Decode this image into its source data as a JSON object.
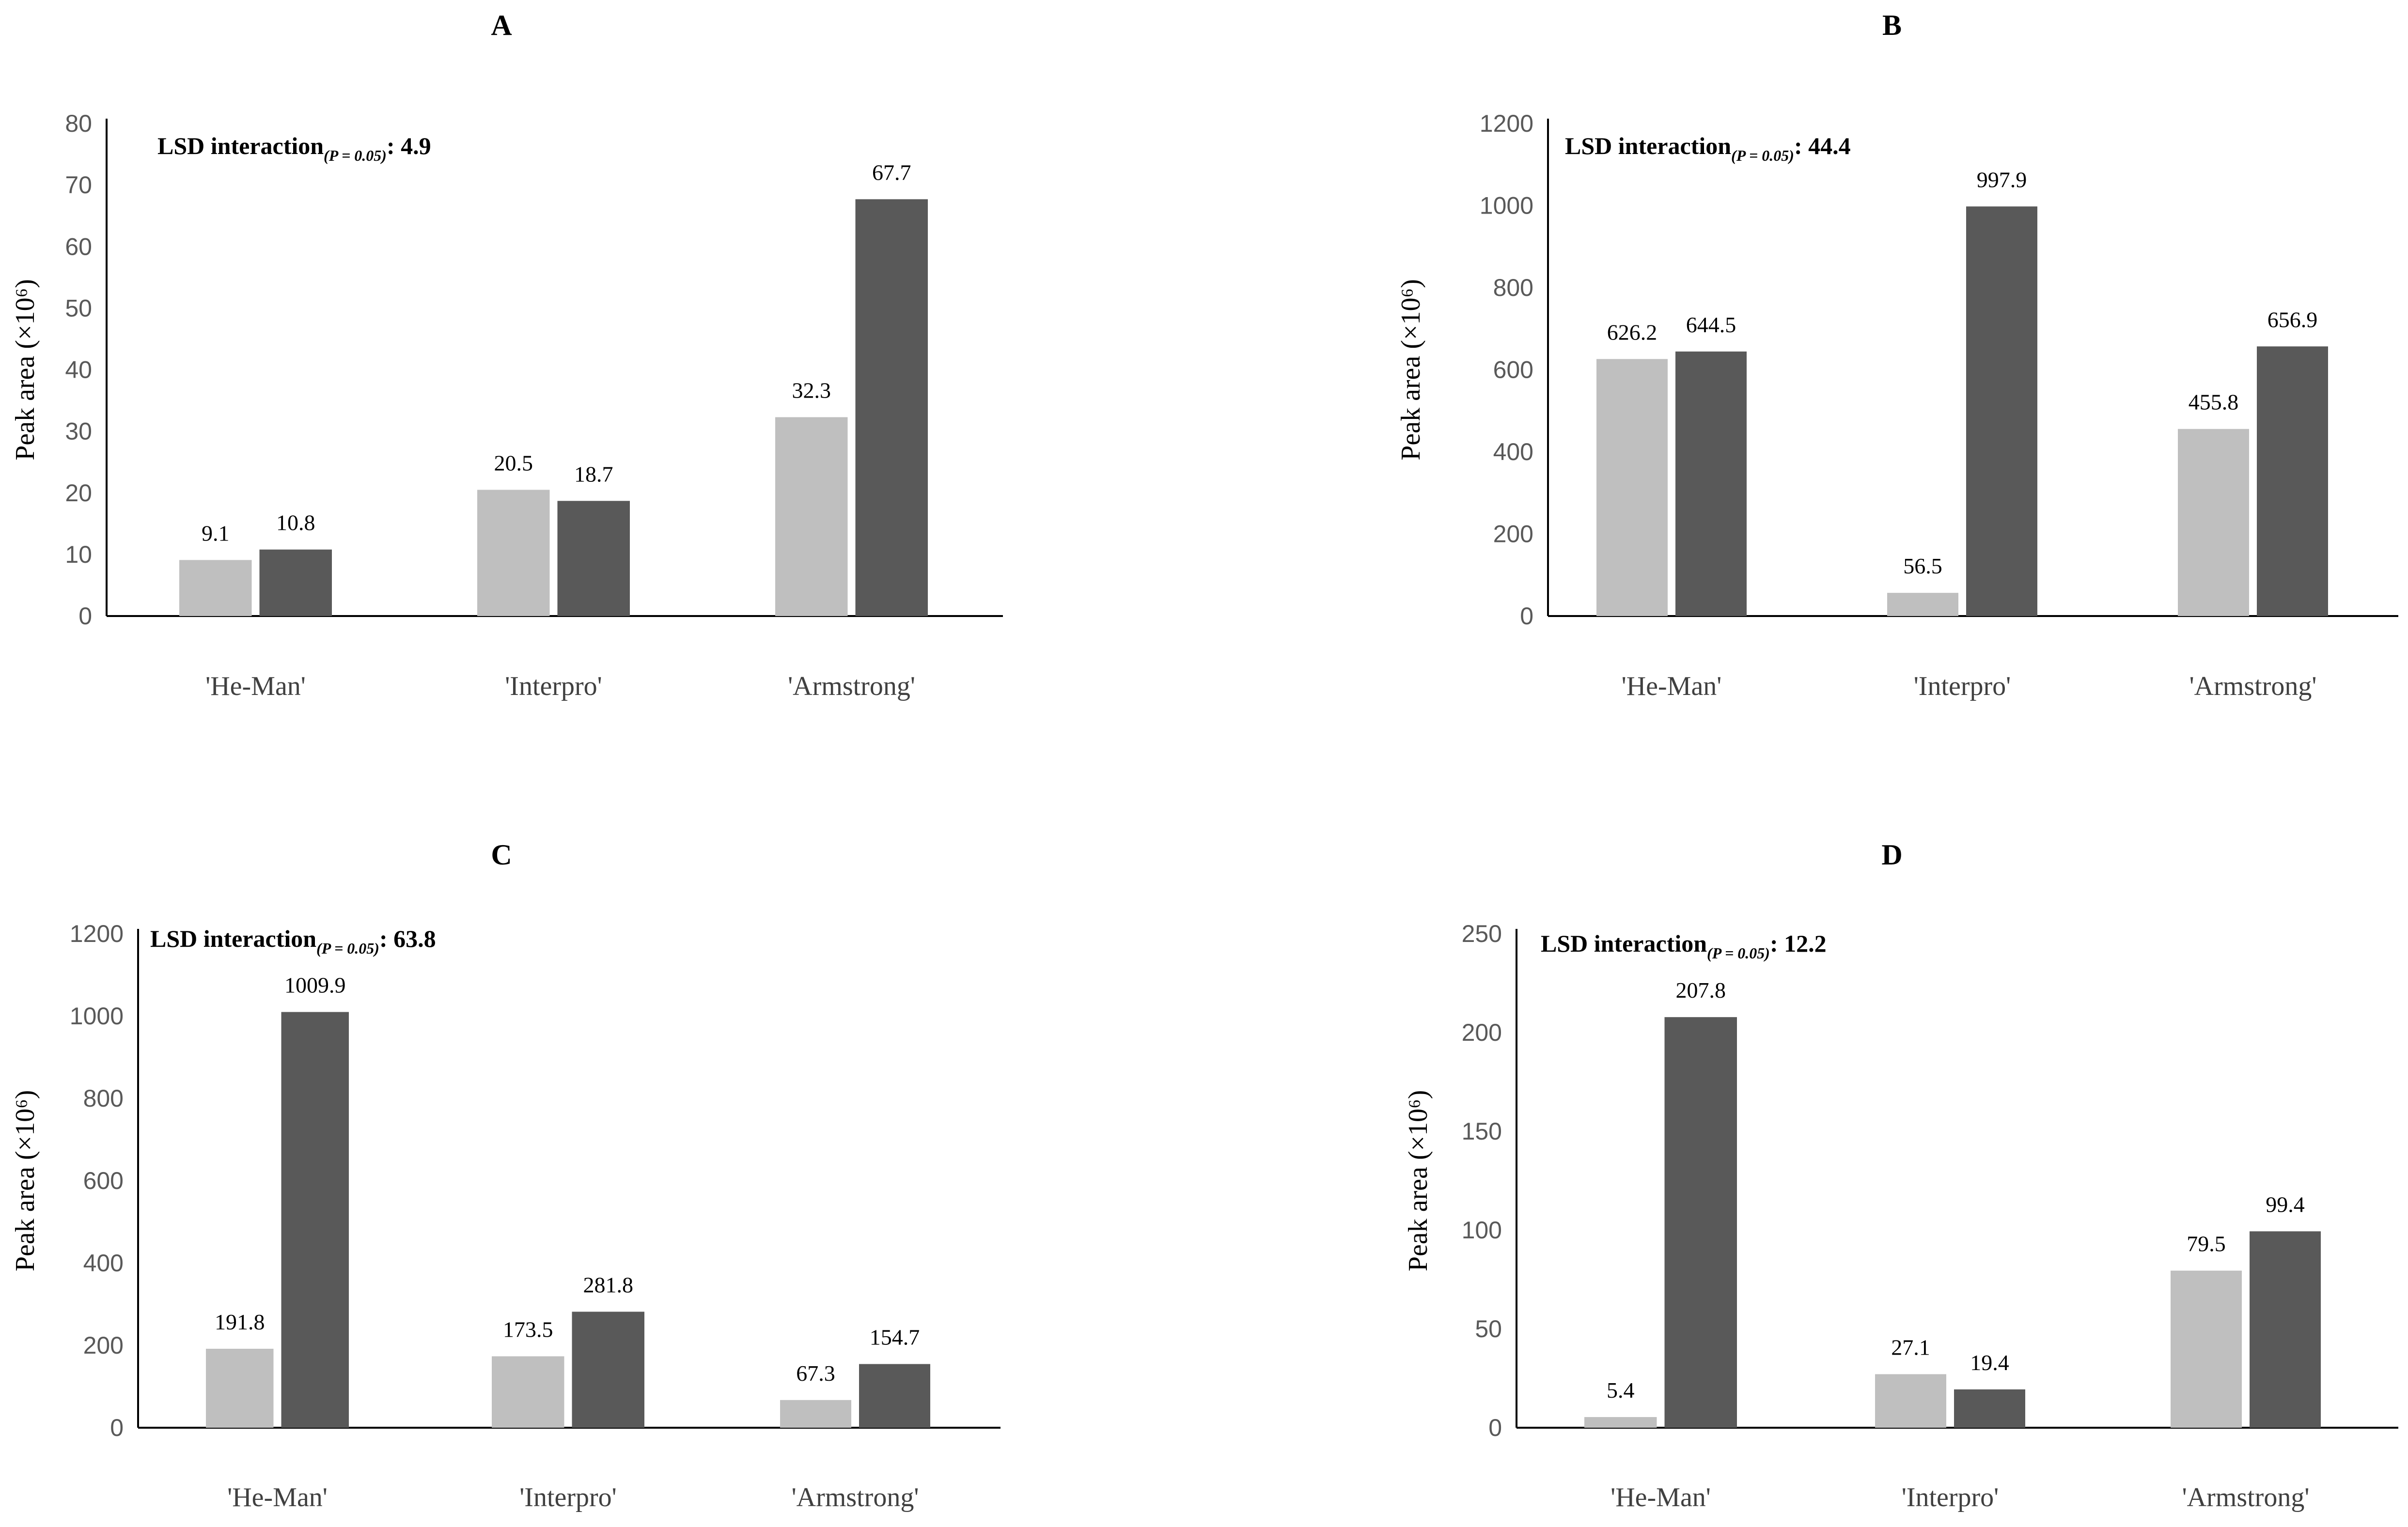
{
  "chart_data": [
    {
      "type": "bar",
      "panel": "A",
      "annotation": {
        "prefix": "LSD interaction",
        "subscript": "(P = 0.05)",
        "suffix": ": 4.9"
      },
      "ylabel": "Peak area (×10⁶)",
      "ylim": [
        0,
        80
      ],
      "yticks": [
        "0",
        "10",
        "20",
        "30",
        "40",
        "50",
        "60",
        "70",
        "80"
      ],
      "categories": [
        "'He-Man'",
        "'Interpro'",
        "'Armstrong'"
      ],
      "series": [
        {
          "name": "series-1",
          "color": "#bfbfbf",
          "values": [
            9.1,
            20.5,
            32.3
          ],
          "labels": [
            "9.1",
            "20.5",
            "32.3"
          ]
        },
        {
          "name": "series-2",
          "color": "#595959",
          "values": [
            10.8,
            18.7,
            67.7
          ],
          "labels": [
            "10.8",
            "18.7",
            "67.7"
          ]
        }
      ]
    },
    {
      "type": "bar",
      "panel": "B",
      "annotation": {
        "prefix": "LSD interaction",
        "subscript": "(P = 0.05)",
        "suffix": ": 44.4"
      },
      "ylabel": "Peak area (×10⁶)",
      "ylim": [
        0,
        1200
      ],
      "yticks": [
        "0",
        "200",
        "400",
        "600",
        "800",
        "1000",
        "1200"
      ],
      "categories": [
        "'He-Man'",
        "'Interpro'",
        "'Armstrong'"
      ],
      "series": [
        {
          "name": "series-1",
          "color": "#bfbfbf",
          "values": [
            626.2,
            56.5,
            455.8
          ],
          "labels": [
            "626.2",
            "56.5",
            "455.8"
          ]
        },
        {
          "name": "series-2",
          "color": "#595959",
          "values": [
            644.5,
            997.9,
            656.9
          ],
          "labels": [
            "644.5",
            "997.9",
            "656.9"
          ]
        }
      ]
    },
    {
      "type": "bar",
      "panel": "C",
      "annotation": {
        "prefix": "LSD interaction",
        "subscript": "(P = 0.05)",
        "suffix": ": 63.8"
      },
      "ylabel": "Peak area (×10⁶)",
      "ylim": [
        0,
        1200
      ],
      "yticks": [
        "0",
        "200",
        "400",
        "600",
        "800",
        "1000",
        "1200"
      ],
      "categories": [
        "'He-Man'",
        "'Interpro'",
        "'Armstrong'"
      ],
      "series": [
        {
          "name": "series-1",
          "color": "#bfbfbf",
          "values": [
            191.8,
            173.5,
            67.3
          ],
          "labels": [
            "191.8",
            "173.5",
            "67.3"
          ]
        },
        {
          "name": "series-2",
          "color": "#595959",
          "values": [
            1009.9,
            281.8,
            154.7
          ],
          "labels": [
            "1009.9",
            "281.8",
            "154.7"
          ]
        }
      ]
    },
    {
      "type": "bar",
      "panel": "D",
      "annotation": {
        "prefix": "LSD interaction",
        "subscript": "(P = 0.05)",
        "suffix": ": 12.2"
      },
      "ylabel": "Peak area (×10⁶)",
      "ylim": [
        0,
        250
      ],
      "yticks": [
        "0",
        "50",
        "100",
        "150",
        "200",
        "250"
      ],
      "categories": [
        "'He-Man'",
        "'Interpro'",
        "'Armstrong'"
      ],
      "series": [
        {
          "name": "series-1",
          "color": "#bfbfbf",
          "values": [
            5.4,
            27.1,
            79.5
          ],
          "labels": [
            "5.4",
            "27.1",
            "79.5"
          ]
        },
        {
          "name": "series-2",
          "color": "#595959",
          "values": [
            207.8,
            19.4,
            99.4
          ],
          "labels": [
            "207.8",
            "19.4",
            "99.4"
          ]
        }
      ]
    }
  ]
}
